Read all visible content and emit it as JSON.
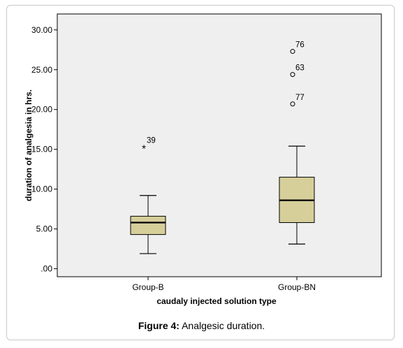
{
  "caption": {
    "label": "Figure 4:",
    "text": " Analgesic duration."
  },
  "colors": {
    "plot_background": "#efefef",
    "box_fill": "#d6cf9a",
    "stroke": "#000000",
    "frame": "#c9c9c9"
  },
  "chart_data": {
    "type": "box",
    "title": "",
    "xlabel": "caudaly injected solution type",
    "ylabel": "duration of analgesia in hrs.",
    "ylim": [
      -1.0,
      32.0
    ],
    "yticks": [
      0,
      5,
      10,
      15,
      20,
      25,
      30
    ],
    "ytick_labels": [
      ".00",
      "5.00",
      "10.00",
      "15.00",
      "20.00",
      "25.00",
      "30.00"
    ],
    "grid": false,
    "categories": [
      "Group-B",
      "Group-BN"
    ],
    "boxes": [
      {
        "category": "Group-B",
        "whisker_low": 1.9,
        "q1": 4.3,
        "median": 5.8,
        "q3": 6.6,
        "whisker_high": 9.2,
        "outliers": [
          {
            "value": 15.3,
            "label": "39",
            "marker": "extreme"
          }
        ]
      },
      {
        "category": "Group-BN",
        "whisker_low": 3.1,
        "q1": 5.8,
        "median": 8.6,
        "q3": 11.5,
        "whisker_high": 15.4,
        "outliers": [
          {
            "value": 27.3,
            "label": "76",
            "marker": "circle"
          },
          {
            "value": 24.4,
            "label": "63",
            "marker": "circle"
          },
          {
            "value": 20.7,
            "label": "77",
            "marker": "circle"
          }
        ]
      }
    ]
  }
}
